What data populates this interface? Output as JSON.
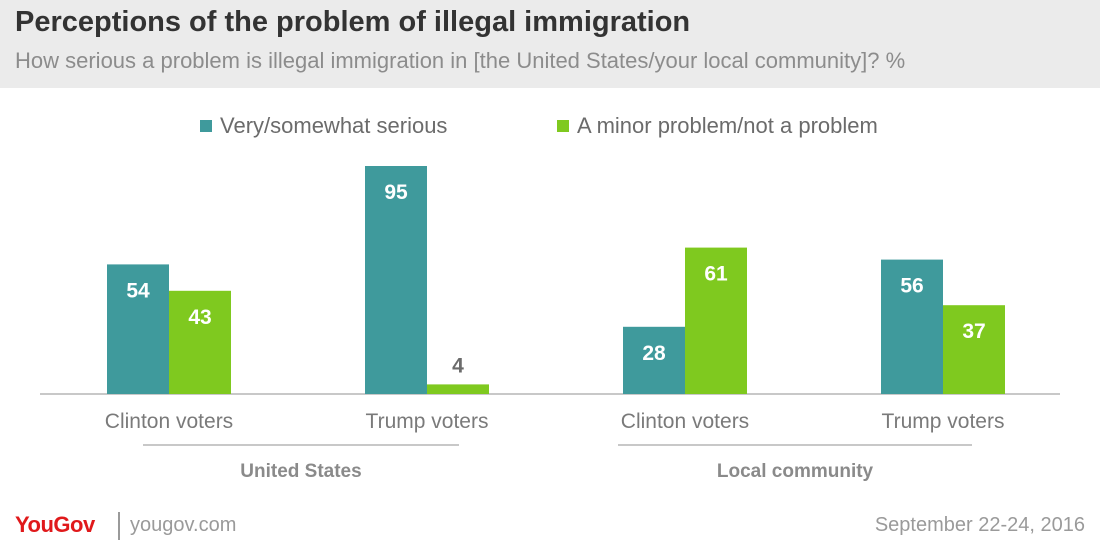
{
  "title": "Perceptions of the problem of illegal immigration",
  "subtitle": "How serious a problem is illegal immigration in [the United States/your local community]? %",
  "colors": {
    "series1": "#3f9a9c",
    "series2": "#7fc91f",
    "header_bg": "#ebebeb"
  },
  "legend": [
    {
      "label": "Very/somewhat serious",
      "color": "#3f9a9c"
    },
    {
      "label": "A minor problem/not a problem",
      "color": "#7fc91f"
    }
  ],
  "chart_data": {
    "type": "bar",
    "categories": [
      "Clinton voters",
      "Trump voters",
      "Clinton voters",
      "Trump voters"
    ],
    "groups": [
      {
        "label": "United States",
        "categories": [
          0,
          1
        ]
      },
      {
        "label": "Local community",
        "categories": [
          2,
          3
        ]
      }
    ],
    "series": [
      {
        "name": "Very/somewhat serious",
        "values": [
          54,
          95,
          28,
          56
        ]
      },
      {
        "name": "A minor problem/not a problem",
        "values": [
          43,
          4,
          61,
          37
        ]
      }
    ],
    "ylim": [
      0,
      100
    ]
  },
  "footer": {
    "logo": "YouGov",
    "site": "yougov.com",
    "date": "September 22-24, 2016"
  }
}
